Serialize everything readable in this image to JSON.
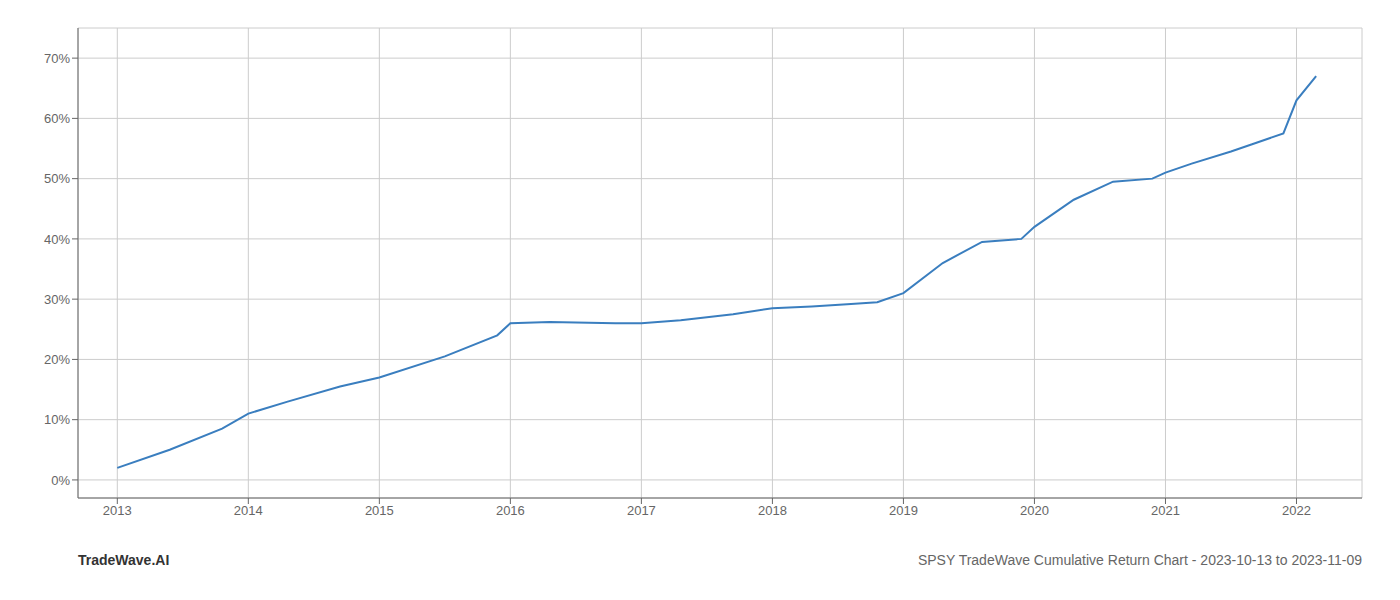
{
  "chart_data": {
    "type": "line",
    "title": "SPSY TradeWave Cumulative Return Chart - 2023-10-13 to 2023-11-09",
    "annotations": [
      "TradeWave.AI"
    ],
    "x": [
      2013.0,
      2013.4,
      2013.8,
      2014.0,
      2014.3,
      2014.7,
      2015.0,
      2015.5,
      2015.9,
      2016.0,
      2016.3,
      2016.6,
      2016.8,
      2017.0,
      2017.3,
      2017.7,
      2018.0,
      2018.3,
      2018.6,
      2018.8,
      2019.0,
      2019.3,
      2019.6,
      2019.9,
      2020.0,
      2020.3,
      2020.6,
      2020.9,
      2021.0,
      2021.2,
      2021.5,
      2021.7,
      2021.9,
      2022.0,
      2022.15
    ],
    "values": [
      2.0,
      5.0,
      8.5,
      11.0,
      13.0,
      15.5,
      17.0,
      20.5,
      24.0,
      26.0,
      26.2,
      26.1,
      26.0,
      26.0,
      26.5,
      27.5,
      28.5,
      28.8,
      29.2,
      29.5,
      31.0,
      36.0,
      39.5,
      40.0,
      42.0,
      46.5,
      49.5,
      50.0,
      51.0,
      52.5,
      54.5,
      56.0,
      57.5,
      63.0,
      67.0
    ],
    "color": "#3a7ebf",
    "xlim": [
      2012.7,
      2022.5
    ],
    "ylim": [
      -3,
      75
    ],
    "xticks": [
      2013,
      2014,
      2015,
      2016,
      2017,
      2018,
      2019,
      2020,
      2021,
      2022
    ],
    "yticks": [
      {
        "value": 0,
        "label": "0%"
      },
      {
        "value": 10,
        "label": "10%"
      },
      {
        "value": 20,
        "label": "20%"
      },
      {
        "value": 30,
        "label": "30%"
      },
      {
        "value": 40,
        "label": "40%"
      },
      {
        "value": 50,
        "label": "50%"
      },
      {
        "value": 60,
        "label": "60%"
      },
      {
        "value": 70,
        "label": "70%"
      }
    ],
    "grid": true
  }
}
